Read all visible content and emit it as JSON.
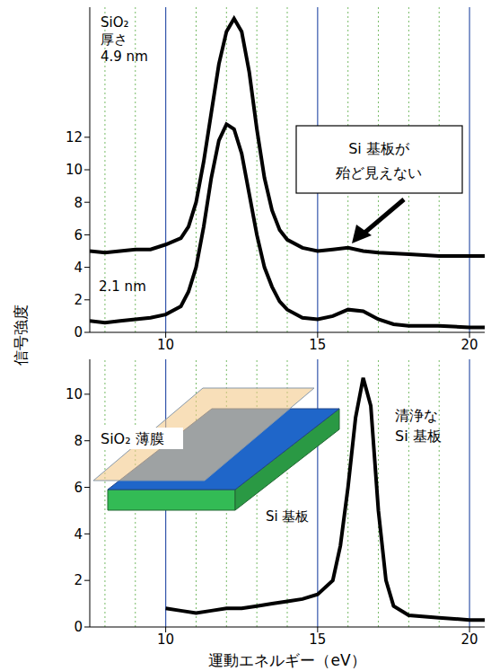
{
  "chart_data": [
    {
      "type": "line",
      "ylabel": "信号強度",
      "xlim": [
        7.5,
        20.5
      ],
      "xticks": [
        10,
        15,
        20
      ],
      "ylim": [
        0,
        20
      ],
      "yticks": [
        0,
        2,
        4,
        6,
        8,
        10,
        12
      ],
      "grid": true,
      "annotations": [
        "Si 基板が\n殆ど見えない"
      ],
      "series": [
        {
          "name": "SiO₂\n厚さ\n4.9 nm",
          "color": "#000000",
          "x": [
            7.5,
            8,
            8.5,
            9,
            9.5,
            10,
            10.5,
            10.75,
            11,
            11.25,
            11.5,
            11.75,
            12,
            12.25,
            12.5,
            12.75,
            13,
            13.25,
            13.5,
            13.75,
            14,
            14.5,
            15,
            15.5,
            16,
            16.5,
            17,
            18,
            19,
            20,
            20.5
          ],
          "values": [
            5.0,
            4.9,
            5.0,
            5.1,
            5.1,
            5.4,
            5.8,
            6.5,
            8.0,
            10.5,
            13.5,
            16.5,
            18.5,
            19.3,
            18.5,
            16.0,
            12.5,
            9.5,
            7.5,
            6.3,
            5.7,
            5.2,
            5.0,
            5.1,
            5.2,
            5.0,
            4.9,
            4.8,
            4.7,
            4.7,
            4.7
          ]
        },
        {
          "name": "2.1 nm",
          "color": "#000000",
          "x": [
            7.5,
            8,
            8.5,
            9,
            9.5,
            10,
            10.5,
            10.75,
            11,
            11.25,
            11.5,
            11.75,
            12,
            12.25,
            12.5,
            12.75,
            13,
            13.25,
            13.5,
            13.75,
            14,
            14.5,
            15,
            15.5,
            16,
            16.5,
            17,
            17.5,
            18,
            19,
            20,
            20.5
          ],
          "values": [
            0.7,
            0.6,
            0.7,
            0.8,
            0.9,
            1.1,
            1.6,
            2.5,
            4.0,
            6.5,
            9.5,
            11.8,
            12.8,
            12.5,
            11.0,
            8.5,
            6.0,
            4.0,
            2.8,
            1.9,
            1.4,
            0.9,
            0.8,
            1.0,
            1.4,
            1.3,
            0.8,
            0.5,
            0.4,
            0.4,
            0.3,
            0.3
          ]
        }
      ]
    },
    {
      "type": "line",
      "xlabel": "運動エネルギー（eV）",
      "xlim": [
        7.5,
        20.5
      ],
      "xticks": [
        10,
        15,
        20
      ],
      "ylim": [
        0,
        11.5
      ],
      "yticks": [
        0,
        2,
        4,
        6,
        8,
        10
      ],
      "grid": true,
      "annotations": [
        "SiO₂ 薄膜",
        "Si 基板"
      ],
      "series": [
        {
          "name": "清浄な\nSi 基板",
          "color": "#000000",
          "x": [
            10,
            10.5,
            11,
            11.5,
            12,
            12.5,
            13,
            13.5,
            14,
            14.5,
            15,
            15.5,
            15.75,
            16,
            16.25,
            16.5,
            16.75,
            17,
            17.25,
            17.5,
            18,
            19,
            20,
            20.5
          ],
          "values": [
            0.8,
            0.7,
            0.6,
            0.7,
            0.8,
            0.8,
            0.9,
            1.0,
            1.1,
            1.2,
            1.4,
            2.0,
            3.5,
            6.0,
            9.0,
            10.7,
            9.5,
            5.0,
            2.0,
            0.9,
            0.5,
            0.4,
            0.3,
            0.3
          ]
        }
      ]
    }
  ]
}
